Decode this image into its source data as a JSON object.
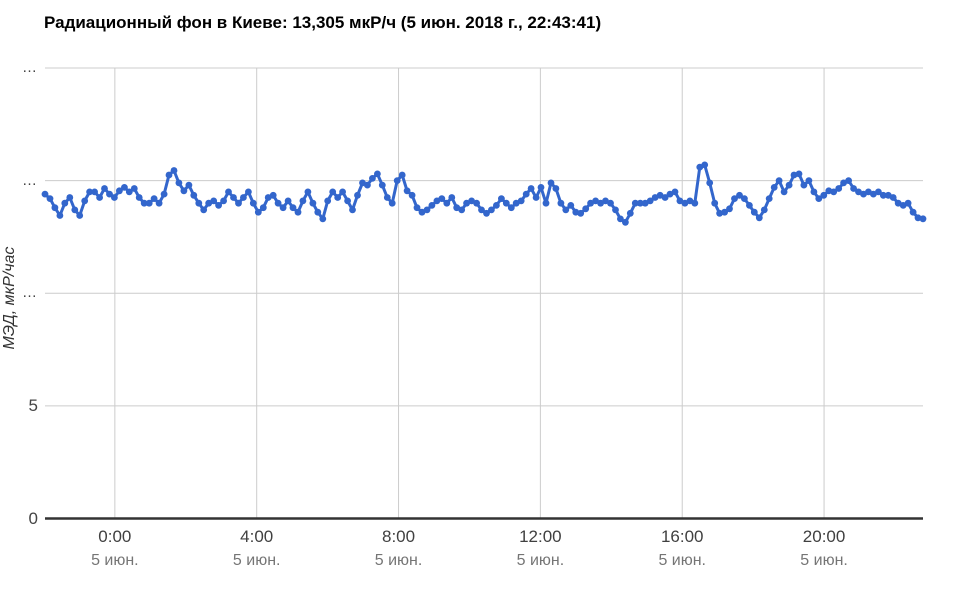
{
  "chart_data": {
    "type": "line",
    "title": "Радиационный фон в Киеве: 13,305 мкР/ч (5 июн. 2018 г., 22:43:41)",
    "ylabel": "МЭД, мкР/час",
    "current": {
      "value": "13,305",
      "unit": "мкР/ч",
      "datetime": "5 июн. 2018 г., 22:43:41"
    },
    "ylim": [
      0,
      20
    ],
    "grid": true,
    "legend": "none",
    "colors": {
      "series": "#3366cc",
      "grid": "#cccccc",
      "baseline": "#333333",
      "tick_time": "#404040",
      "tick_date": "#757575"
    },
    "y_ticks": [
      {
        "value": 20,
        "label": "…"
      },
      {
        "value": 15,
        "label": "…"
      },
      {
        "value": 10,
        "label": "…"
      },
      {
        "value": 5,
        "label": "5"
      },
      {
        "value": 0,
        "label": "0"
      }
    ],
    "x_ticks": [
      {
        "hour": 0,
        "time": "0:00",
        "date": "5 июн."
      },
      {
        "hour": 4,
        "time": "4:00",
        "date": "5 июн."
      },
      {
        "hour": 8,
        "time": "8:00",
        "date": "5 июн."
      },
      {
        "hour": 12,
        "time": "12:00",
        "date": "5 июн."
      },
      {
        "hour": 16,
        "time": "16:00",
        "date": "5 июн."
      },
      {
        "hour": 20,
        "time": "20:00",
        "date": "5 июн."
      }
    ],
    "series": [
      {
        "name": "МЭД, мкР/час",
        "color": "#3366cc",
        "unit": "мкР/ч",
        "start_hour": -1.97,
        "end_hour": 22.79,
        "values": [
          14.4,
          14.2,
          13.8,
          13.45,
          14.0,
          14.25,
          13.7,
          13.45,
          14.1,
          14.5,
          14.5,
          14.25,
          14.65,
          14.4,
          14.25,
          14.55,
          14.7,
          14.5,
          14.65,
          14.25,
          14.0,
          14.0,
          14.2,
          14.0,
          14.4,
          15.25,
          15.45,
          14.9,
          14.55,
          14.8,
          14.35,
          14.0,
          13.7,
          14.0,
          14.1,
          13.9,
          14.1,
          14.5,
          14.25,
          14.0,
          14.25,
          14.5,
          14.0,
          13.6,
          13.8,
          14.25,
          14.35,
          14.0,
          13.8,
          14.1,
          13.8,
          13.6,
          14.1,
          14.5,
          14.0,
          13.6,
          13.3,
          14.1,
          14.5,
          14.25,
          14.5,
          14.1,
          13.7,
          14.35,
          14.9,
          14.8,
          15.1,
          15.3,
          14.8,
          14.25,
          14.0,
          15.0,
          15.25,
          14.55,
          14.35,
          13.8,
          13.6,
          13.7,
          13.9,
          14.1,
          14.2,
          14.0,
          14.25,
          13.8,
          13.7,
          14.0,
          14.1,
          14.0,
          13.7,
          13.55,
          13.7,
          13.9,
          14.2,
          14.0,
          13.8,
          14.0,
          14.1,
          14.4,
          14.65,
          14.25,
          14.7,
          14.0,
          14.9,
          14.65,
          14.0,
          13.7,
          13.9,
          13.6,
          13.55,
          13.75,
          14.0,
          14.1,
          14.0,
          14.1,
          14.0,
          13.7,
          13.3,
          13.15,
          13.55,
          14.0,
          14.0,
          14.0,
          14.1,
          14.25,
          14.35,
          14.25,
          14.4,
          14.5,
          14.1,
          14.0,
          14.1,
          14.0,
          15.6,
          15.7,
          14.9,
          14.0,
          13.55,
          13.6,
          13.75,
          14.2,
          14.35,
          14.2,
          13.9,
          13.6,
          13.35,
          13.7,
          14.2,
          14.7,
          15.0,
          14.5,
          14.8,
          15.25,
          15.3,
          14.8,
          15.0,
          14.5,
          14.2,
          14.35,
          14.55,
          14.5,
          14.65,
          14.9,
          15.0,
          14.65,
          14.5,
          14.4,
          14.5,
          14.4,
          14.5,
          14.35,
          14.35,
          14.25,
          14.0,
          13.9,
          14.0,
          13.6,
          13.35,
          13.305
        ]
      }
    ]
  }
}
